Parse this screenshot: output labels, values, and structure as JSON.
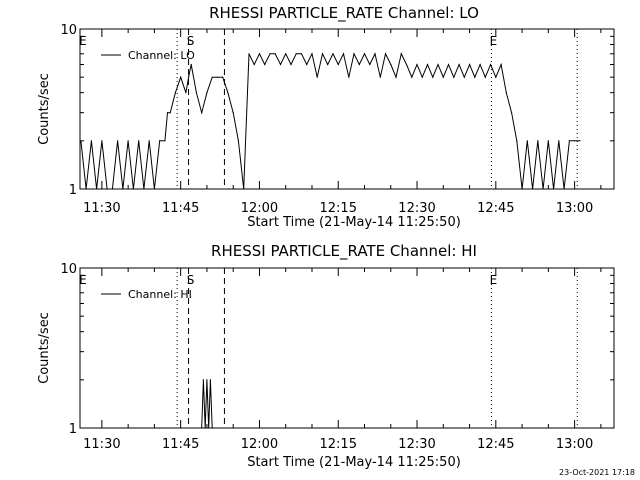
{
  "chart_data": [
    {
      "type": "line",
      "title": "RHESSI PARTICLE_RATE Channel: LO",
      "xlabel": "Start Time (21-May-14 11:25:50)",
      "ylabel": "Counts/sec",
      "yscale": "log",
      "ylim": [
        1,
        10
      ],
      "ytick_labels": [
        "1",
        "10"
      ],
      "xlim": [
        "11:25:50",
        "13:07:30"
      ],
      "xtick_labels": [
        "11:30",
        "11:45",
        "12:00",
        "12:15",
        "12:30",
        "12:45",
        "13:00"
      ],
      "grid": false,
      "legend_position": "top-left",
      "series": [
        {
          "name": "Channel: LO",
          "x": [
            "11:26:00",
            "11:27:00",
            "11:28:00",
            "11:29:00",
            "11:30:00",
            "11:31:00",
            "11:32:00",
            "11:33:00",
            "11:34:00",
            "11:35:00",
            "11:36:00",
            "11:37:00",
            "11:38:00",
            "11:39:00",
            "11:40:00",
            "11:41:00",
            "11:42:00",
            "11:42:30",
            "11:43:00",
            "11:44:00",
            "11:45:00",
            "11:46:00",
            "11:46:30",
            "11:47:00",
            "11:48:00",
            "11:49:00",
            "11:50:00",
            "11:51:00",
            "11:52:00",
            "11:53:00",
            "11:54:00",
            "11:55:00",
            "11:56:00",
            "11:57:00",
            "11:58:00",
            "11:59:00",
            "12:00:00",
            "12:01:00",
            "12:02:00",
            "12:03:00",
            "12:04:00",
            "12:05:00",
            "12:06:00",
            "12:07:00",
            "12:08:00",
            "12:09:00",
            "12:10:00",
            "12:11:00",
            "12:12:00",
            "12:13:00",
            "12:14:00",
            "12:15:00",
            "12:16:00",
            "12:17:00",
            "12:18:00",
            "12:19:00",
            "12:20:00",
            "12:21:00",
            "12:22:00",
            "12:23:00",
            "12:24:00",
            "12:25:00",
            "12:26:00",
            "12:27:00",
            "12:28:00",
            "12:29:00",
            "12:30:00",
            "12:31:00",
            "12:32:00",
            "12:33:00",
            "12:34:00",
            "12:35:00",
            "12:36:00",
            "12:37:00",
            "12:38:00",
            "12:39:00",
            "12:40:00",
            "12:41:00",
            "12:42:00",
            "12:43:00",
            "12:44:00",
            "12:45:00",
            "12:46:00",
            "12:47:00",
            "12:48:00",
            "12:49:00",
            "12:50:00",
            "12:51:00",
            "12:52:00",
            "12:53:00",
            "12:54:00",
            "12:55:00",
            "12:56:00",
            "12:57:00",
            "12:58:00",
            "12:59:00",
            "13:00:00",
            "13:01:00"
          ],
          "y": [
            2,
            1,
            2,
            1,
            2,
            1,
            1,
            2,
            1,
            2,
            1,
            2,
            1,
            2,
            1,
            2,
            2,
            3,
            3,
            4,
            5,
            4,
            5,
            6,
            4,
            3,
            4,
            5,
            5,
            5,
            4,
            3,
            2,
            1,
            7,
            6,
            7,
            6,
            7,
            7,
            6,
            7,
            6,
            7,
            7,
            6,
            7,
            5,
            7,
            6,
            7,
            6,
            7,
            5,
            7,
            6,
            7,
            6,
            7,
            5,
            7,
            6,
            5,
            7,
            6,
            5,
            6,
            5,
            6,
            5,
            6,
            5,
            6,
            5,
            6,
            5,
            6,
            5,
            6,
            5,
            6,
            5,
            6,
            4,
            3,
            2,
            1,
            2,
            1,
            2,
            1,
            2,
            1,
            2,
            1,
            2,
            2,
            2
          ],
          "event_markers": [
            {
              "label": "E",
              "time": "11:26:00",
              "style": "dotted"
            },
            {
              "label": "S",
              "time": "11:46:30",
              "style": "dashed"
            },
            {
              "label": "",
              "time": "11:53:20",
              "style": "dashed"
            },
            {
              "label": "",
              "time": "11:44:20",
              "style": "dotted"
            },
            {
              "label": "E",
              "time": "12:44:10",
              "style": "dotted"
            },
            {
              "label": "",
              "time": "13:00:30",
              "style": "dotted"
            }
          ]
        }
      ]
    },
    {
      "type": "line",
      "title": "RHESSI PARTICLE_RATE Channel: HI",
      "xlabel": "Start Time (21-May-14 11:25:50)",
      "ylabel": "Counts/sec",
      "yscale": "log",
      "ylim": [
        1,
        10
      ],
      "ytick_labels": [
        "1",
        "10"
      ],
      "xlim": [
        "11:25:50",
        "13:07:30"
      ],
      "xtick_labels": [
        "11:30",
        "11:45",
        "12:00",
        "12:15",
        "12:30",
        "12:45",
        "13:00"
      ],
      "grid": false,
      "legend_position": "top-left",
      "series": [
        {
          "name": "Channel: HI",
          "x": [
            "11:49:00",
            "11:49:20",
            "11:49:40",
            "11:50:00",
            "11:50:20",
            "11:50:40",
            "11:51:00",
            "11:51:20"
          ],
          "y": [
            1,
            2,
            1,
            2,
            1,
            2,
            1,
            1
          ],
          "event_markers": [
            {
              "label": "E",
              "time": "11:26:00",
              "style": "dotted"
            },
            {
              "label": "S",
              "time": "11:46:30",
              "style": "dashed"
            },
            {
              "label": "",
              "time": "11:53:20",
              "style": "dashed"
            },
            {
              "label": "",
              "time": "11:44:20",
              "style": "dotted"
            },
            {
              "label": "E",
              "time": "12:44:10",
              "style": "dotted"
            },
            {
              "label": "",
              "time": "13:00:30",
              "style": "dotted"
            }
          ]
        }
      ]
    }
  ],
  "footer": {
    "timestamp": "23-Oct-2021 17:18"
  }
}
